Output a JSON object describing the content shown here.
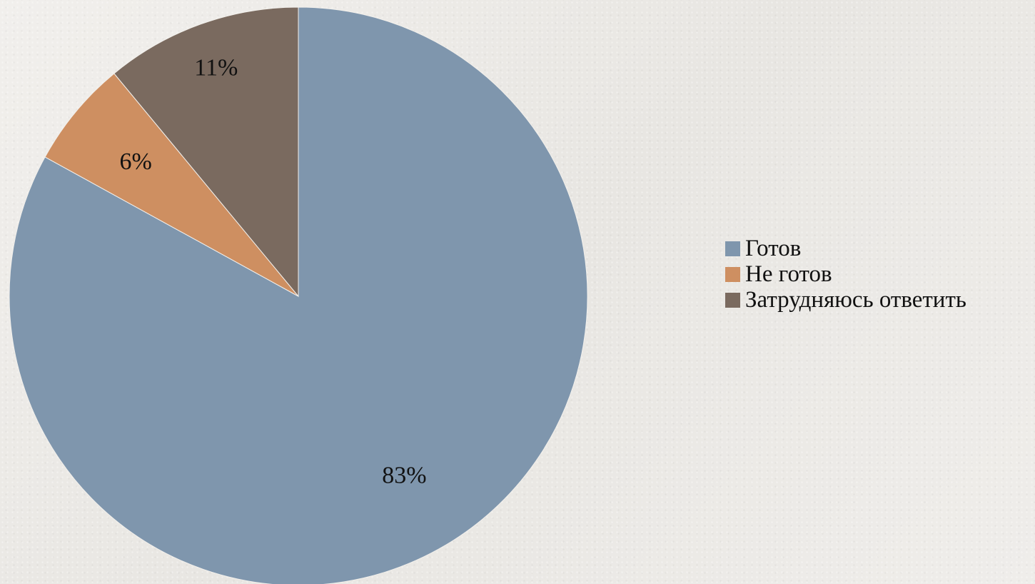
{
  "chart_data": {
    "type": "pie",
    "title": "",
    "start_angle_deg": 0,
    "direction": "clockwise",
    "slices": [
      {
        "label": "Готов",
        "value": 83,
        "display": "83%",
        "color": "#7f96ad"
      },
      {
        "label": "Не готов",
        "value": 6,
        "display": "6%",
        "color": "#ce8f61"
      },
      {
        "label": "Затрудняюсь ответить",
        "value": 11,
        "display": "11%",
        "color": "#7a6a5f"
      }
    ],
    "legend": {
      "position": "right",
      "entries": [
        "Готов",
        "Не готов",
        "Затрудняюсь ответить"
      ]
    }
  }
}
